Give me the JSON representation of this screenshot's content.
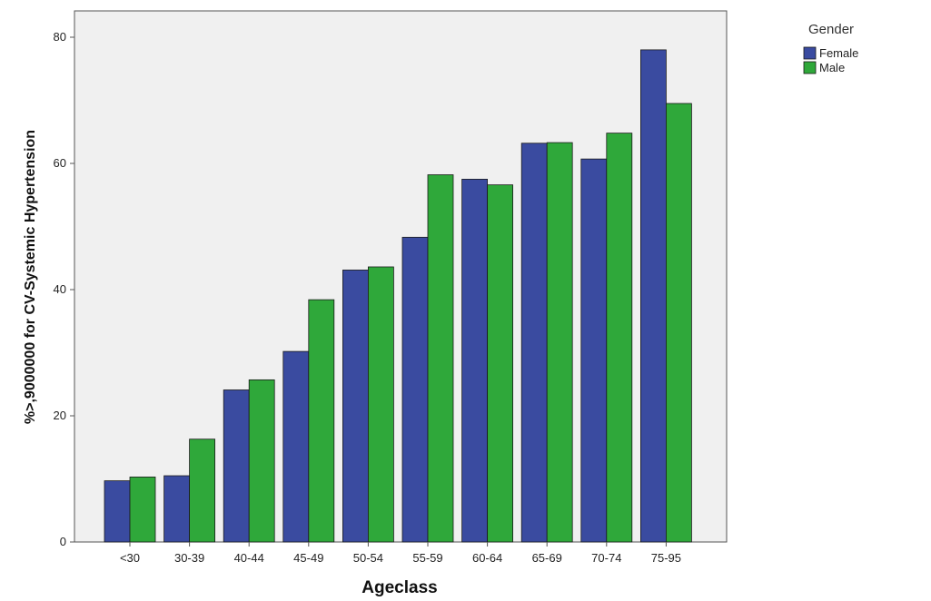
{
  "chart_data": {
    "type": "bar",
    "xlabel": "Ageclass",
    "ylabel": "%>,9000000 for CV-Systemic Hypertension",
    "categories": [
      "<30",
      "30-39",
      "40-44",
      "45-49",
      "50-54",
      "55-59",
      "60-64",
      "65-69",
      "70-74",
      "75-95"
    ],
    "series": [
      {
        "name": "Female",
        "color": "#3a4ba0",
        "values": [
          9.7,
          10.5,
          24.1,
          30.2,
          43.1,
          48.3,
          57.5,
          63.2,
          60.7,
          78.0
        ]
      },
      {
        "name": "Male",
        "color": "#2fa83a",
        "values": [
          10.3,
          16.3,
          25.7,
          38.4,
          43.6,
          58.2,
          56.6,
          63.3,
          64.8,
          69.5
        ]
      }
    ],
    "ylim": [
      0,
      80
    ],
    "yticks": [
      0,
      20,
      40,
      60,
      80
    ],
    "legend": {
      "title": "Gender",
      "placement": "top-right outside"
    },
    "grid": false
  }
}
